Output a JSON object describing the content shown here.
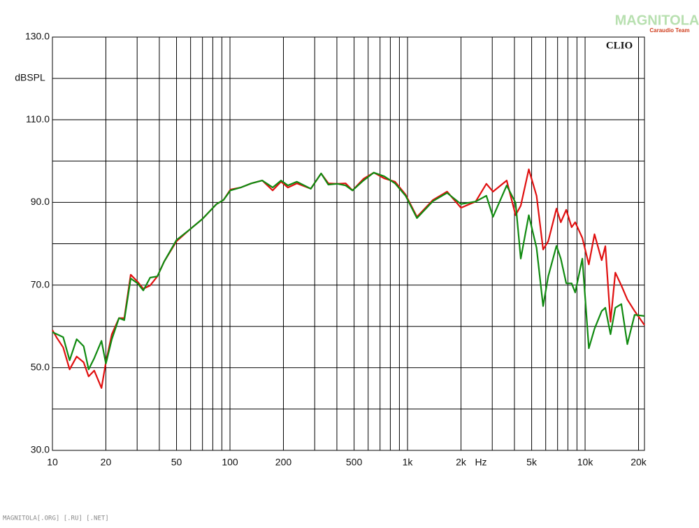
{
  "chart_data": {
    "type": "line",
    "y_label": "dBSPL",
    "x_unit": "Hz",
    "badge": "CLIO",
    "watermark": "MAGNITOLA",
    "watermark_sub": "Caraudio Team",
    "footer": "MAGNITOLA[.ORG] [.RU] [.NET]",
    "log_x": true,
    "grid": true,
    "xlim": [
      10,
      21600
    ],
    "ylim": [
      30,
      130
    ],
    "xticks": [
      10,
      20,
      50,
      100,
      200,
      500,
      {
        "value": 1000,
        "label": "1k"
      },
      {
        "value": 2000,
        "label": "2k"
      },
      {
        "value": 5000,
        "label": "5k"
      },
      {
        "value": 10000,
        "label": "10k"
      },
      {
        "value": 20000,
        "label": "20k"
      }
    ],
    "xminor": [
      30,
      40,
      60,
      70,
      80,
      90,
      300,
      400,
      600,
      700,
      800,
      900,
      3000,
      4000,
      6000,
      7000,
      8000,
      9000
    ],
    "yticks": [
      {
        "value": 30,
        "label": "30.0"
      },
      {
        "value": 50,
        "label": "50.0"
      },
      {
        "value": 70,
        "label": "70.0"
      },
      {
        "value": 90,
        "label": "90.0"
      },
      {
        "value": 110,
        "label": "110.0"
      },
      {
        "value": 130,
        "label": "130.0"
      }
    ],
    "yminor": [
      40,
      60,
      80,
      100,
      120
    ],
    "x": [
      10,
      10.6,
      11.5,
      12.5,
      13.7,
      15,
      16,
      17.2,
      18.9,
      20,
      21.6,
      23.7,
      25.4,
      27.6,
      30.2,
      32.5,
      35.5,
      39,
      42.6,
      50,
      59.6,
      70,
      84,
      92,
      100.5,
      115,
      132,
      152,
      174,
      194,
      212,
      238,
      285,
      326,
      358,
      402,
      448,
      490,
      565,
      646,
      740,
      850,
      975,
      1130,
      1390,
      1670,
      2000,
      2420,
      2780,
      3030,
      3620,
      4060,
      4340,
      4820,
      5330,
      5800,
      6200,
      6900,
      7300,
      7830,
      8400,
      8800,
      9650,
      10500,
      11300,
      12400,
      13000,
      13900,
      14800,
      16000,
      17300,
      19000,
      21600
    ],
    "series": [
      {
        "color": "#e01010",
        "values": [
          59.1,
          57.2,
          54.9,
          49.6,
          52.7,
          51.3,
          47.9,
          49.3,
          45.1,
          51.3,
          58.1,
          62.0,
          62.0,
          72.5,
          70.8,
          69.1,
          69.9,
          72.1,
          75.7,
          80.6,
          83.5,
          86.0,
          89.6,
          90.6,
          93.1,
          93.6,
          94.6,
          95.3,
          92.9,
          95.0,
          93.6,
          94.6,
          93.3,
          97.0,
          94.6,
          94.5,
          94.6,
          92.9,
          95.7,
          97.2,
          95.8,
          95.0,
          91.9,
          86.5,
          90.6,
          92.6,
          88.7,
          90.2,
          94.5,
          92.6,
          95.3,
          86.9,
          89.2,
          98.0,
          91.6,
          78.6,
          80.6,
          88.5,
          85.2,
          88.2,
          84.0,
          85.2,
          81.4,
          75.0,
          82.3,
          76.0,
          79.4,
          61.1,
          73.0,
          69.9,
          66.5,
          63.7,
          60.3
        ]
      },
      {
        "color": "#108a10",
        "values": [
          58.6,
          58.1,
          57.4,
          51.8,
          56.9,
          55.2,
          49.6,
          52.3,
          56.5,
          51.0,
          56.9,
          62.0,
          61.5,
          71.6,
          70.4,
          68.7,
          71.8,
          72.1,
          75.7,
          80.9,
          83.5,
          86.0,
          89.6,
          90.6,
          92.9,
          93.6,
          94.6,
          95.3,
          93.6,
          95.3,
          94.1,
          95.0,
          93.3,
          97.0,
          94.3,
          94.5,
          94.1,
          92.9,
          95.3,
          97.2,
          96.3,
          94.6,
          91.6,
          86.2,
          90.3,
          92.3,
          89.6,
          90.2,
          91.6,
          86.5,
          94.1,
          89.9,
          76.4,
          86.9,
          79.0,
          64.9,
          72.1,
          79.5,
          76.4,
          70.4,
          70.4,
          68.2,
          76.4,
          54.7,
          59.4,
          63.7,
          64.5,
          58.1,
          64.5,
          65.4,
          55.7,
          62.8,
          62.5
        ]
      }
    ]
  }
}
